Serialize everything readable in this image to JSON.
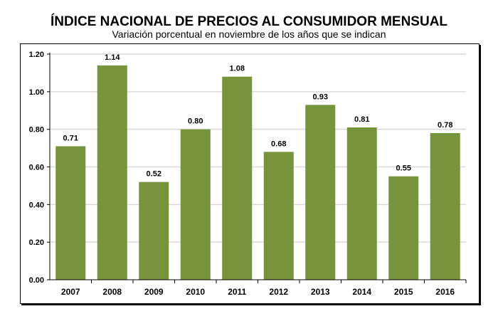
{
  "chart_data": {
    "type": "bar",
    "title": "ÍNDICE NACIONAL DE PRECIOS AL CONSUMIDOR MENSUAL",
    "subtitle": "Variación porcentual en noviembre de los años que se indican",
    "categories": [
      "2007",
      "2008",
      "2009",
      "2010",
      "2011",
      "2012",
      "2013",
      "2014",
      "2015",
      "2016"
    ],
    "values": [
      0.71,
      1.14,
      0.52,
      0.8,
      1.08,
      0.68,
      0.93,
      0.81,
      0.55,
      0.78
    ],
    "data_labels": [
      "0.71",
      "1.14",
      "0.52",
      "0.80",
      "1.08",
      "0.68",
      "0.93",
      "0.81",
      "0.55",
      "0.78"
    ],
    "yticks": [
      "0.00",
      "0.20",
      "0.40",
      "0.60",
      "0.80",
      "1.00",
      "1.20"
    ],
    "ylim": [
      0,
      1.2
    ],
    "grid": true,
    "bar_color": "#77933c",
    "xlabel": "",
    "ylabel": ""
  }
}
